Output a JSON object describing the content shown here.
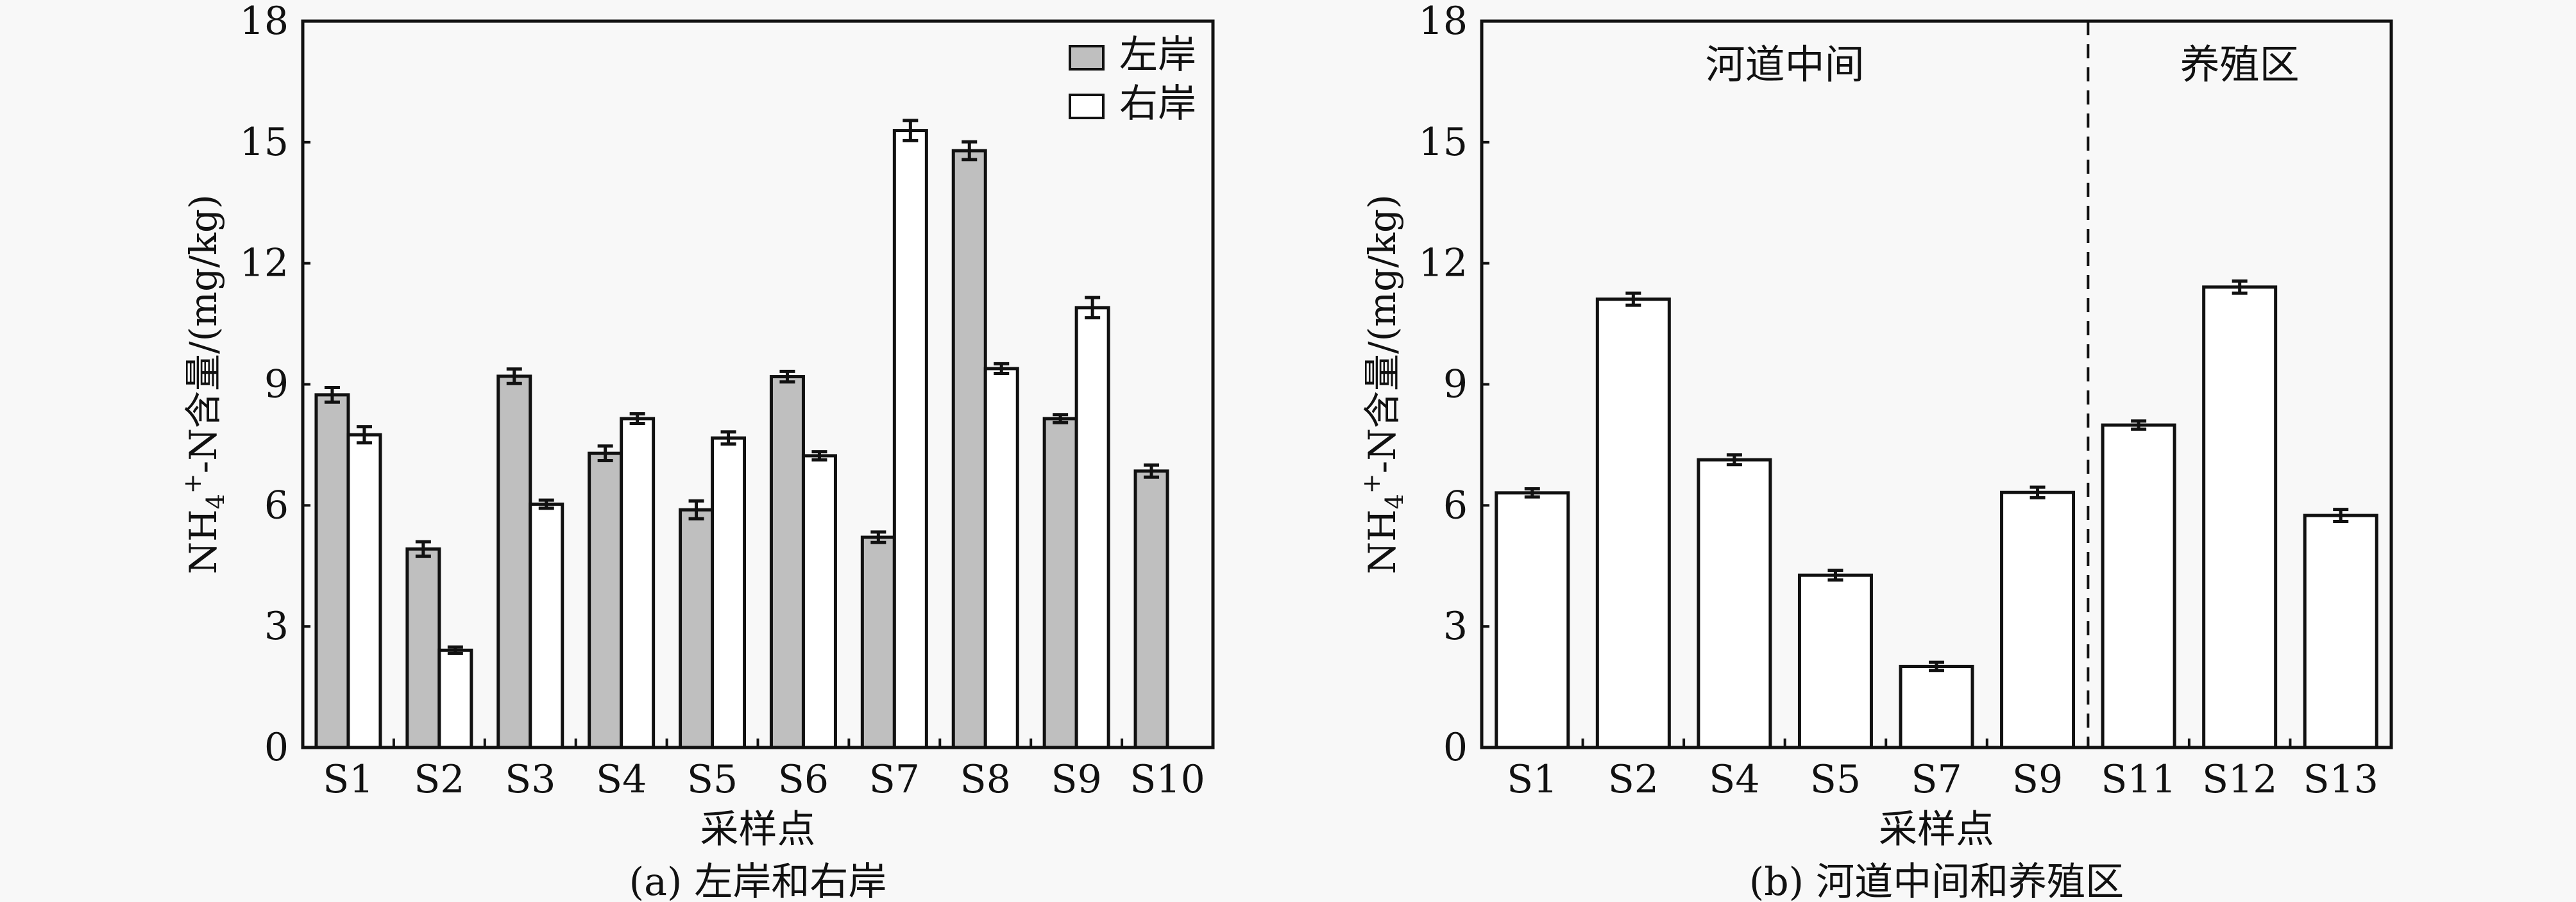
{
  "chart_data": [
    {
      "type": "bar",
      "title": "(a) 左岸和右岸",
      "xlabel": "采样点",
      "ylabel": "NH4+-N含量/(mg/kg)",
      "ylim": [
        0,
        18
      ],
      "yticks": [
        0,
        3,
        6,
        9,
        12,
        15,
        18
      ],
      "grid": false,
      "legend_position": "top-right",
      "categories": [
        "S1",
        "S2",
        "S3",
        "S4",
        "S5",
        "S6",
        "S7",
        "S8",
        "S9",
        "S10"
      ],
      "series": [
        {
          "name": "左岸",
          "color": "#bfbfbf",
          "values": [
            8.74,
            4.92,
            9.2,
            7.29,
            5.89,
            9.19,
            5.21,
            14.79,
            8.15,
            6.85
          ],
          "errors": [
            0.18,
            0.18,
            0.18,
            0.18,
            0.22,
            0.13,
            0.13,
            0.22,
            0.1,
            0.15
          ]
        },
        {
          "name": "右岸",
          "color": "#ffffff",
          "values": [
            7.75,
            2.41,
            6.03,
            8.15,
            7.67,
            7.23,
            15.29,
            9.39,
            10.9,
            null
          ],
          "errors": [
            0.2,
            0.08,
            0.1,
            0.12,
            0.15,
            0.1,
            0.25,
            0.12,
            0.25,
            null
          ]
        }
      ]
    },
    {
      "type": "bar",
      "title": "(b) 河道中间和养殖区",
      "xlabel": "采样点",
      "ylabel": "NH4+-N含量/(mg/kg)",
      "ylim": [
        0,
        18
      ],
      "yticks": [
        0,
        3,
        6,
        9,
        12,
        15,
        18
      ],
      "grid": false,
      "categories": [
        "S1",
        "S2",
        "S4",
        "S5",
        "S7",
        "S9",
        "S11",
        "S12",
        "S13"
      ],
      "series": [
        {
          "name": "NH4+-N",
          "color": "#ffffff",
          "values": [
            6.31,
            11.11,
            7.13,
            4.27,
            2.01,
            6.32,
            7.99,
            11.41,
            5.75
          ],
          "errors": [
            0.1,
            0.15,
            0.12,
            0.12,
            0.1,
            0.13,
            0.1,
            0.15,
            0.15
          ]
        }
      ],
      "regions": [
        {
          "label": "河道中间",
          "from_index": 0,
          "to_index": 5
        },
        {
          "label": "养殖区",
          "from_index": 6,
          "to_index": 8
        }
      ],
      "divider_after_index": 5
    }
  ]
}
